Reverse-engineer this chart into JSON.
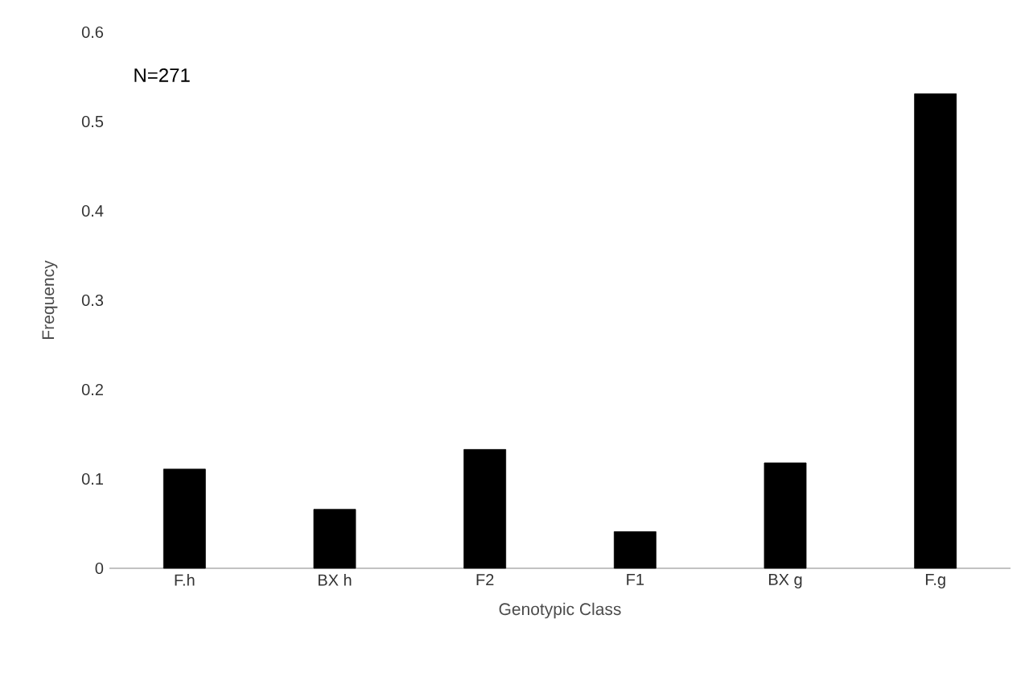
{
  "chart_data": {
    "type": "bar",
    "xlabel": "Genotypic Class",
    "ylabel": "Frequency",
    "categories": [
      "F.h",
      "BX h",
      "F2",
      "F1",
      "BX g",
      "F.g"
    ],
    "values": [
      0.111,
      0.066,
      0.133,
      0.041,
      0.118,
      0.531
    ],
    "color": "#000000",
    "ylim": [
      0,
      0.6
    ],
    "yticks": [
      0,
      0.1,
      0.2,
      0.3,
      0.4,
      0.5,
      0.6
    ],
    "annotations": [
      "N=271"
    ]
  }
}
